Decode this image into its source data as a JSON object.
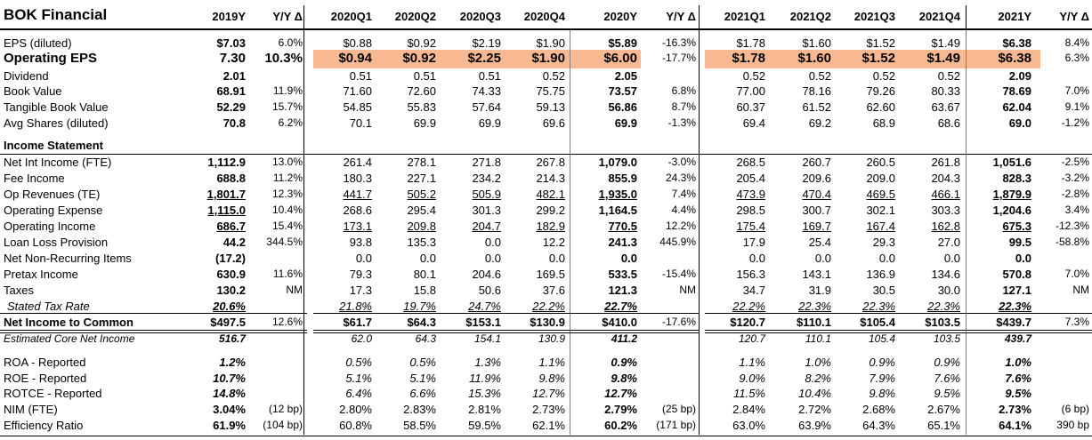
{
  "title": "BOK Financial",
  "headers": [
    "2019Y",
    "Y/Y Δ",
    "2020Q1",
    "2020Q2",
    "2020Q3",
    "2020Q4",
    "2020Y",
    "Y/Y Δ",
    "2021Q1",
    "2021Q2",
    "2021Q3",
    "2021Q4",
    "2021Y",
    "Y/Y Δ"
  ],
  "colors": {
    "highlight": "#f8b992",
    "text": "#000000",
    "background": "#ffffff"
  },
  "rows": [
    {
      "label": "EPS (diluted)",
      "cells": [
        "$7.03",
        "6.0%",
        "$0.88",
        "$0.92",
        "$2.19",
        "$1.90",
        "$5.89",
        "-16.3%",
        "$1.78",
        "$1.60",
        "$1.52",
        "$1.49",
        "$6.38",
        "8.4%"
      ]
    },
    {
      "label": "Operating EPS",
      "cells": [
        "7.30",
        "10.3%",
        "$0.94",
        "$0.92",
        "$2.25",
        "$1.90",
        "$6.00",
        "-17.7%",
        "$1.78",
        "$1.60",
        "$1.52",
        "$1.49",
        "$6.38",
        "6.3%"
      ]
    },
    {
      "label": "Dividend",
      "cells": [
        "2.01",
        "",
        "0.51",
        "0.51",
        "0.51",
        "0.52",
        "2.05",
        "",
        "0.52",
        "0.52",
        "0.52",
        "0.52",
        "2.09",
        ""
      ]
    },
    {
      "label": "Book Value",
      "cells": [
        "68.91",
        "11.9%",
        "71.60",
        "72.60",
        "74.33",
        "75.75",
        "73.57",
        "6.8%",
        "77.00",
        "78.16",
        "79.26",
        "80.33",
        "78.69",
        "7.0%"
      ]
    },
    {
      "label": "Tangible Book Value",
      "cells": [
        "52.29",
        "15.7%",
        "54.85",
        "55.83",
        "57.64",
        "59.13",
        "56.86",
        "8.7%",
        "60.37",
        "61.52",
        "62.60",
        "63.67",
        "62.04",
        "9.1%"
      ]
    },
    {
      "label": "Avg Shares (diluted)",
      "cells": [
        "70.8",
        "6.2%",
        "70.1",
        "69.9",
        "69.9",
        "69.6",
        "69.9",
        "-1.3%",
        "69.4",
        "69.2",
        "68.9",
        "68.6",
        "69.0",
        "-1.2%"
      ]
    },
    {
      "label": "Income Statement",
      "cells": []
    },
    {
      "label": "Net Int Income (FTE)",
      "cells": [
        "1,112.9",
        "13.0%",
        "261.4",
        "278.1",
        "271.8",
        "267.8",
        "1,079.0",
        "-3.0%",
        "268.5",
        "260.7",
        "260.5",
        "261.8",
        "1,051.6",
        "-2.5%"
      ]
    },
    {
      "label": "Fee Income",
      "cells": [
        "688.8",
        "11.2%",
        "180.3",
        "227.1",
        "234.2",
        "214.3",
        "855.9",
        "24.3%",
        "205.4",
        "209.6",
        "209.0",
        "204.3",
        "828.3",
        "-3.2%"
      ]
    },
    {
      "label": "Op Revenues (TE)",
      "cells": [
        "1,801.7",
        "12.3%",
        "441.7",
        "505.2",
        "505.9",
        "482.1",
        "1,935.0",
        "7.4%",
        "473.9",
        "470.4",
        "469.5",
        "466.1",
        "1,879.9",
        "-2.8%"
      ]
    },
    {
      "label": "Operating Expense",
      "cells": [
        "1,115.0",
        "10.4%",
        "268.6",
        "295.4",
        "301.3",
        "299.2",
        "1,164.5",
        "4.4%",
        "298.5",
        "300.7",
        "302.1",
        "303.3",
        "1,204.6",
        "3.4%"
      ]
    },
    {
      "label": "Operating Income",
      "cells": [
        "686.7",
        "15.4%",
        "173.1",
        "209.8",
        "204.7",
        "182.9",
        "770.5",
        "12.2%",
        "175.4",
        "169.7",
        "167.4",
        "162.8",
        "675.3",
        "-12.3%"
      ]
    },
    {
      "label": "Loan Loss Provision",
      "cells": [
        "44.2",
        "344.5%",
        "93.8",
        "135.3",
        "0.0",
        "12.2",
        "241.3",
        "445.9%",
        "17.9",
        "25.4",
        "29.3",
        "27.0",
        "99.5",
        "-58.8%"
      ]
    },
    {
      "label": "Net Non-Recurring Items",
      "cells": [
        "(17.2)",
        "",
        "0.0",
        "0.0",
        "0.0",
        "0.0",
        "0.0",
        "",
        "0.0",
        "0.0",
        "0.0",
        "0.0",
        "0.0",
        ""
      ]
    },
    {
      "label": "Pretax Income",
      "cells": [
        "630.9",
        "11.6%",
        "79.3",
        "80.1",
        "204.6",
        "169.5",
        "533.5",
        "-15.4%",
        "156.3",
        "143.1",
        "136.9",
        "134.6",
        "570.8",
        "7.0%"
      ]
    },
    {
      "label": "Taxes",
      "cells": [
        "130.2",
        "NM",
        "17.3",
        "15.8",
        "50.6",
        "37.6",
        "121.3",
        "NM",
        "34.7",
        "31.9",
        "30.5",
        "30.0",
        "127.1",
        "NM"
      ]
    },
    {
      "label": "Stated Tax Rate",
      "cells": [
        "20.6%",
        "",
        "21.8%",
        "19.7%",
        "24.7%",
        "22.2%",
        "22.7%",
        "",
        "22.2%",
        "22.3%",
        "22.3%",
        "22.3%",
        "22.3%",
        ""
      ]
    },
    {
      "label": "Net Income to Common",
      "cells": [
        "$497.5",
        "12.6%",
        "$61.7",
        "$64.3",
        "$153.1",
        "$130.9",
        "$410.0",
        "-17.6%",
        "$120.7",
        "$110.1",
        "$105.4",
        "$103.5",
        "$439.7",
        "7.3%"
      ]
    },
    {
      "label": "Estimated Core Net Income",
      "cells": [
        "516.7",
        "",
        "62.0",
        "64.3",
        "154.1",
        "130.9",
        "411.2",
        "",
        "120.7",
        "110.1",
        "105.4",
        "103.5",
        "439.7",
        ""
      ]
    },
    {
      "label": "ROA - Reported",
      "cells": [
        "1.2%",
        "",
        "0.5%",
        "0.5%",
        "1.3%",
        "1.1%",
        "0.9%",
        "",
        "1.1%",
        "1.0%",
        "0.9%",
        "0.9%",
        "1.0%",
        ""
      ]
    },
    {
      "label": "ROE - Reported",
      "cells": [
        "10.7%",
        "",
        "5.1%",
        "5.1%",
        "11.9%",
        "9.8%",
        "9.8%",
        "",
        "9.0%",
        "8.2%",
        "7.9%",
        "7.6%",
        "7.6%",
        ""
      ]
    },
    {
      "label": "ROTCE - Reported",
      "cells": [
        "14.8%",
        "",
        "6.4%",
        "6.6%",
        "15.3%",
        "12.7%",
        "12.7%",
        "",
        "11.5%",
        "10.4%",
        "9.8%",
        "9.5%",
        "9.5%",
        ""
      ]
    },
    {
      "label": "NIM (FTE)",
      "cells": [
        "3.04%",
        "(12 bp)",
        "2.80%",
        "2.83%",
        "2.81%",
        "2.73%",
        "2.79%",
        "(25 bp)",
        "2.84%",
        "2.72%",
        "2.68%",
        "2.67%",
        "2.73%",
        "(6 bp)"
      ]
    },
    {
      "label": "Efficiency Ratio",
      "cells": [
        "61.9%",
        "(104 bp)",
        "60.8%",
        "58.5%",
        "59.5%",
        "62.1%",
        "60.2%",
        "(171 bp)",
        "63.0%",
        "63.9%",
        "64.3%",
        "65.1%",
        "64.1%",
        "390 bp"
      ]
    }
  ]
}
